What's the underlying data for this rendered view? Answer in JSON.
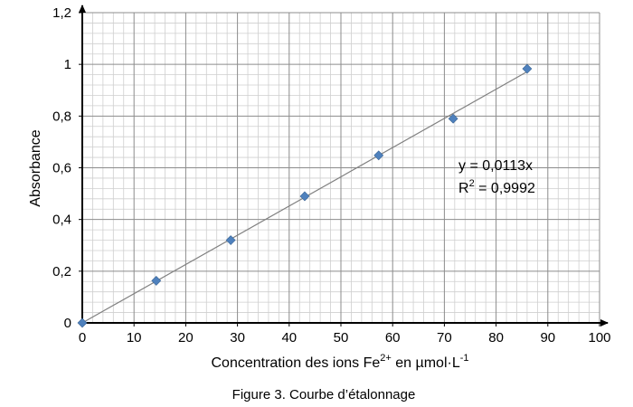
{
  "chart_data": {
    "type": "scatter",
    "xlabel_main": "Concentration des ions Fe",
    "xlabel_sup1": "2+",
    "xlabel_mid": " en µmol·L",
    "xlabel_sup2": "-1",
    "ylabel": "Absorbance",
    "caption": "Figure 3. Courbe d’étalonnage",
    "xlim": [
      0,
      100
    ],
    "ylim": [
      0,
      1.2
    ],
    "x_ticks": [
      "0",
      "10",
      "20",
      "30",
      "40",
      "50",
      "60",
      "70",
      "80",
      "90",
      "100"
    ],
    "y_ticks": [
      "0",
      "0,2",
      "0,4",
      "0,6",
      "0,8",
      "1",
      "1,2"
    ],
    "grid": "on",
    "marker_color": "#4f81bd",
    "trendline_color": "#808080",
    "series": [
      {
        "x": [
          0,
          14.3,
          28.7,
          43.0,
          57.3,
          71.7,
          86.0
        ],
        "y": [
          0,
          0.163,
          0.32,
          0.49,
          0.648,
          0.79,
          0.983
        ]
      }
    ],
    "trendline": {
      "slope": 0.0113,
      "equation": "y = 0,0113x",
      "r2_prefix": "R",
      "r2_sup": "2",
      "r2_value": " = 0,9992"
    }
  }
}
